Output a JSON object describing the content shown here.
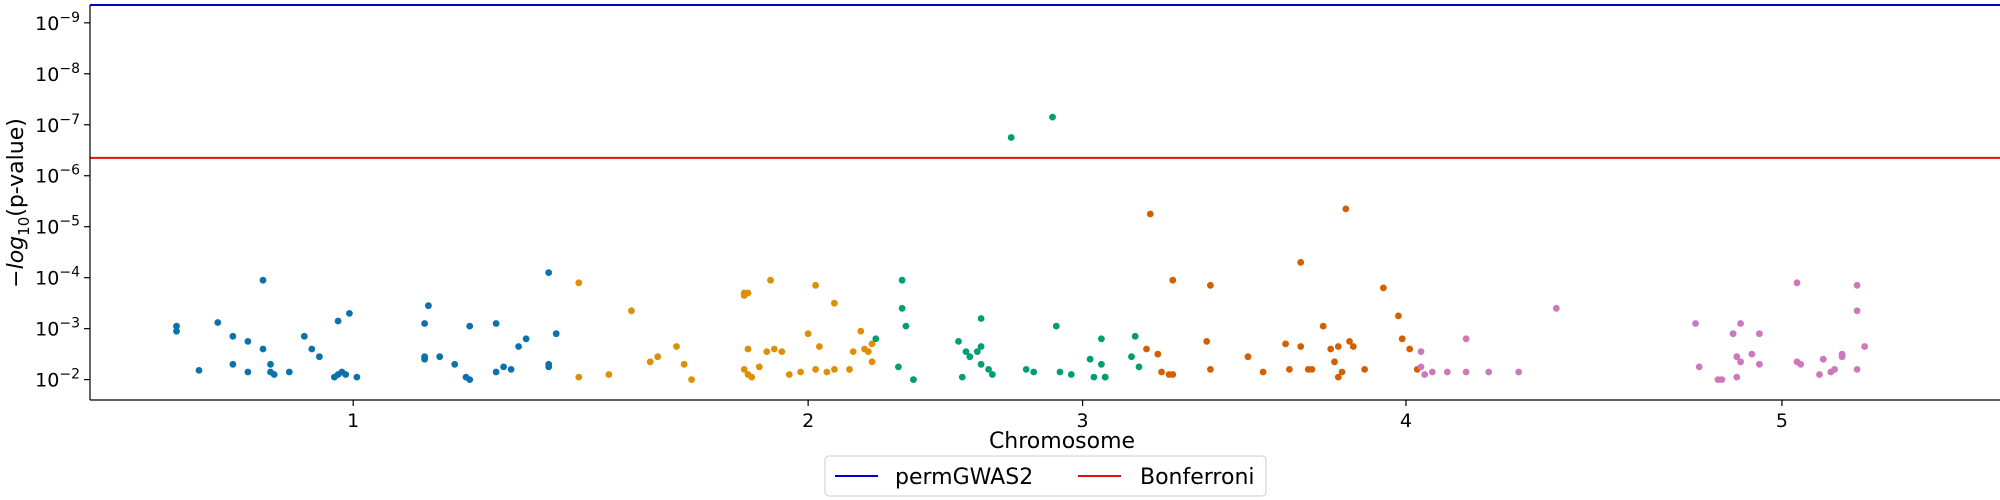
{
  "chart_data": {
    "type": "scatter",
    "title": "",
    "xlabel": "Chromosome",
    "ylabel_prefix": "−",
    "ylabel_log": "log",
    "ylabel_sub": "10",
    "ylabel_suffix": "(p-value)",
    "x_ticks": [
      {
        "label": "1",
        "pos": 1.0
      },
      {
        "label": "2",
        "pos": 2.21
      },
      {
        "label": "3",
        "pos": 2.94
      },
      {
        "label": "4",
        "pos": 3.8
      },
      {
        "label": "5",
        "pos": 4.8
      }
    ],
    "y_ticks": [
      {
        "label": "10",
        "exp": "−2",
        "value": 2
      },
      {
        "label": "10",
        "exp": "−3",
        "value": 3
      },
      {
        "label": "10",
        "exp": "−4",
        "value": 4
      },
      {
        "label": "10",
        "exp": "−5",
        "value": 5
      },
      {
        "label": "10",
        "exp": "−6",
        "value": 6
      },
      {
        "label": "10",
        "exp": "−7",
        "value": 7
      },
      {
        "label": "10",
        "exp": "−8",
        "value": 8
      },
      {
        "label": "10",
        "exp": "−9",
        "value": 9
      }
    ],
    "xlim": [
      0.3,
      5.38
    ],
    "ylim": [
      1.6,
      9.35
    ],
    "thresholds": [
      {
        "name": "permGWAS2",
        "value": 9.35,
        "color": "#0000cc"
      },
      {
        "name": "Bonferroni",
        "value": 6.35,
        "color": "#e01010"
      }
    ],
    "legend_position": "bottom-center",
    "series": [
      {
        "color": "#0b72ad",
        "points": [
          [
            0.53,
            3.05
          ],
          [
            0.53,
            2.95
          ],
          [
            0.59,
            2.18
          ],
          [
            0.64,
            3.12
          ],
          [
            0.68,
            2.85
          ],
          [
            0.68,
            2.3
          ],
          [
            0.72,
            2.75
          ],
          [
            0.72,
            2.15
          ],
          [
            0.76,
            3.95
          ],
          [
            0.76,
            2.6
          ],
          [
            0.78,
            2.3
          ],
          [
            0.78,
            2.15
          ],
          [
            0.79,
            2.1
          ],
          [
            0.83,
            2.15
          ],
          [
            0.87,
            2.85
          ],
          [
            0.89,
            2.6
          ],
          [
            0.91,
            2.45
          ],
          [
            0.95,
            2.05
          ],
          [
            0.96,
            2.1
          ],
          [
            0.97,
            2.15
          ],
          [
            0.98,
            2.1
          ],
          [
            0.96,
            3.15
          ],
          [
            0.99,
            3.3
          ],
          [
            1.01,
            2.05
          ],
          [
            1.2,
            3.45
          ],
          [
            1.19,
            3.1
          ],
          [
            1.19,
            2.4
          ],
          [
            1.19,
            2.45
          ],
          [
            1.23,
            2.45
          ],
          [
            1.27,
            2.3
          ],
          [
            1.3,
            2.05
          ],
          [
            1.31,
            2.0
          ],
          [
            1.31,
            3.05
          ],
          [
            1.38,
            3.1
          ],
          [
            1.38,
            2.15
          ],
          [
            1.4,
            2.25
          ],
          [
            1.42,
            2.2
          ],
          [
            1.44,
            2.65
          ],
          [
            1.46,
            2.8
          ],
          [
            1.52,
            4.1
          ],
          [
            1.52,
            2.3
          ],
          [
            1.52,
            2.25
          ],
          [
            1.54,
            2.9
          ]
        ]
      },
      {
        "color": "#de8f05",
        "points": [
          [
            1.6,
            2.05
          ],
          [
            1.6,
            3.9
          ],
          [
            1.68,
            2.1
          ],
          [
            1.74,
            3.35
          ],
          [
            1.79,
            2.35
          ],
          [
            1.81,
            2.45
          ],
          [
            1.86,
            2.65
          ],
          [
            1.88,
            2.3
          ],
          [
            1.9,
            2.0
          ],
          [
            2.04,
            3.7
          ],
          [
            2.04,
            3.65
          ],
          [
            2.05,
            3.7
          ],
          [
            2.05,
            2.6
          ],
          [
            2.04,
            2.2
          ],
          [
            2.05,
            2.1
          ],
          [
            2.06,
            2.05
          ],
          [
            2.08,
            2.25
          ],
          [
            2.1,
            2.55
          ],
          [
            2.11,
            3.95
          ],
          [
            2.12,
            2.6
          ],
          [
            2.14,
            2.55
          ],
          [
            2.16,
            2.1
          ],
          [
            2.19,
            2.15
          ],
          [
            2.21,
            2.9
          ],
          [
            2.23,
            3.85
          ],
          [
            2.23,
            2.2
          ],
          [
            2.24,
            2.65
          ],
          [
            2.26,
            2.15
          ],
          [
            2.28,
            3.5
          ],
          [
            2.28,
            2.2
          ],
          [
            2.32,
            2.2
          ],
          [
            2.33,
            2.55
          ],
          [
            2.35,
            2.95
          ],
          [
            2.36,
            2.6
          ],
          [
            2.37,
            2.55
          ],
          [
            2.38,
            2.7
          ],
          [
            2.38,
            2.35
          ]
        ]
      },
      {
        "color": "#029e73",
        "points": [
          [
            2.39,
            2.8
          ],
          [
            2.45,
            2.25
          ],
          [
            2.46,
            3.95
          ],
          [
            2.46,
            3.4
          ],
          [
            2.47,
            3.05
          ],
          [
            2.49,
            2.0
          ],
          [
            2.61,
            2.75
          ],
          [
            2.62,
            2.05
          ],
          [
            2.63,
            2.55
          ],
          [
            2.64,
            2.45
          ],
          [
            2.66,
            2.55
          ],
          [
            2.67,
            3.2
          ],
          [
            2.67,
            2.65
          ],
          [
            2.67,
            2.3
          ],
          [
            2.69,
            2.2
          ],
          [
            2.7,
            2.1
          ],
          [
            2.75,
            6.75
          ],
          [
            2.79,
            2.2
          ],
          [
            2.81,
            2.15
          ],
          [
            2.86,
            7.15
          ],
          [
            2.87,
            3.05
          ],
          [
            2.88,
            2.15
          ],
          [
            2.91,
            2.1
          ],
          [
            2.96,
            2.4
          ],
          [
            2.97,
            2.05
          ],
          [
            2.99,
            2.8
          ],
          [
            2.99,
            2.3
          ],
          [
            3.0,
            2.05
          ],
          [
            3.0,
            2.05
          ],
          [
            3.07,
            2.45
          ],
          [
            3.08,
            2.85
          ],
          [
            3.09,
            2.25
          ]
        ]
      },
      {
        "color": "#d55e00",
        "points": [
          [
            3.12,
            5.25
          ],
          [
            3.11,
            2.6
          ],
          [
            3.14,
            2.5
          ],
          [
            3.15,
            2.15
          ],
          [
            3.17,
            2.1
          ],
          [
            3.18,
            3.95
          ],
          [
            3.18,
            2.1
          ],
          [
            3.27,
            2.75
          ],
          [
            3.28,
            3.85
          ],
          [
            3.28,
            2.2
          ],
          [
            3.38,
            2.45
          ],
          [
            3.42,
            2.15
          ],
          [
            3.48,
            2.7
          ],
          [
            3.49,
            2.2
          ],
          [
            3.52,
            4.3
          ],
          [
            3.52,
            2.65
          ],
          [
            3.54,
            2.2
          ],
          [
            3.55,
            2.2
          ],
          [
            3.58,
            3.05
          ],
          [
            3.6,
            2.6
          ],
          [
            3.61,
            2.35
          ],
          [
            3.62,
            2.05
          ],
          [
            3.63,
            2.15
          ],
          [
            3.62,
            2.65
          ],
          [
            3.64,
            5.35
          ],
          [
            3.65,
            2.75
          ],
          [
            3.66,
            2.65
          ],
          [
            3.69,
            2.2
          ],
          [
            3.74,
            3.8
          ],
          [
            3.78,
            3.25
          ],
          [
            3.79,
            2.8
          ],
          [
            3.81,
            2.6
          ],
          [
            3.83,
            2.2
          ]
        ]
      },
      {
        "color": "#cc78bc",
        "points": [
          [
            3.84,
            2.55
          ],
          [
            3.84,
            2.25
          ],
          [
            3.85,
            2.1
          ],
          [
            3.87,
            2.15
          ],
          [
            3.91,
            2.15
          ],
          [
            3.96,
            2.8
          ],
          [
            3.96,
            2.15
          ],
          [
            4.02,
            2.15
          ],
          [
            4.1,
            2.15
          ],
          [
            4.2,
            3.4
          ],
          [
            4.57,
            3.1
          ],
          [
            4.58,
            2.25
          ],
          [
            4.63,
            2.0
          ],
          [
            4.64,
            2.0
          ],
          [
            4.67,
            2.9
          ],
          [
            4.68,
            2.45
          ],
          [
            4.68,
            2.05
          ],
          [
            4.69,
            3.1
          ],
          [
            4.69,
            2.35
          ],
          [
            4.72,
            2.5
          ],
          [
            4.74,
            2.9
          ],
          [
            4.74,
            2.3
          ],
          [
            4.84,
            3.9
          ],
          [
            4.84,
            2.35
          ],
          [
            4.85,
            2.3
          ],
          [
            4.9,
            2.1
          ],
          [
            4.91,
            2.4
          ],
          [
            4.93,
            2.15
          ],
          [
            4.94,
            2.2
          ],
          [
            4.96,
            2.45
          ],
          [
            4.96,
            2.5
          ],
          [
            5.0,
            3.85
          ],
          [
            5.0,
            3.35
          ],
          [
            5.0,
            2.2
          ],
          [
            5.02,
            2.65
          ]
        ]
      }
    ]
  }
}
